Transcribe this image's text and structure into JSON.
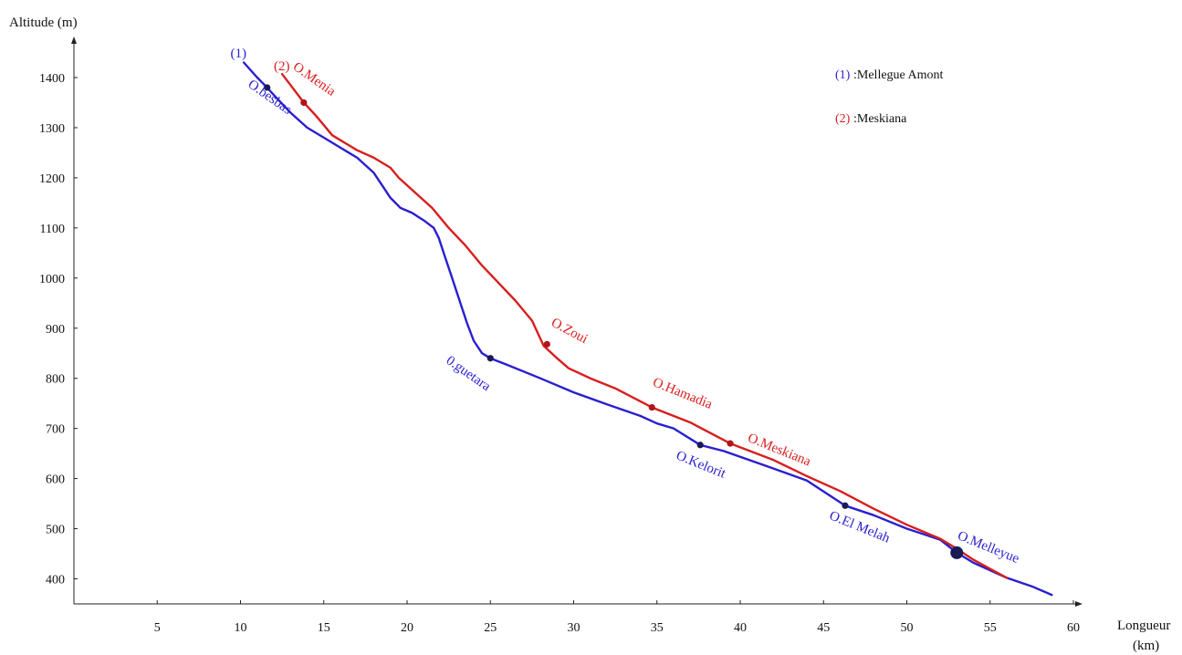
{
  "chart_data": {
    "type": "line",
    "ylabel": "Altitude (m)",
    "xlabel_line1": "Longueur",
    "xlabel_line2": "(km)",
    "xlim": [
      0,
      60
    ],
    "ylim": [
      350,
      1450
    ],
    "x_ticks": [
      5,
      10,
      15,
      20,
      25,
      30,
      35,
      40,
      45,
      50,
      55,
      60
    ],
    "y_ticks": [
      400,
      500,
      600,
      700,
      800,
      900,
      1000,
      1100,
      1200,
      1300,
      1400
    ],
    "grid": false,
    "colors": {
      "series1": "#2a1fd0",
      "series2": "#d81e1e",
      "marker_dark": "#1a1a55",
      "marker_red": "#b0141c"
    },
    "series": [
      {
        "id": "s1",
        "tag": "(1)",
        "tag_x": 9.4,
        "tag_y": 1440,
        "points": [
          [
            10.2,
            1430
          ],
          [
            11,
            1400
          ],
          [
            11.6,
            1380
          ],
          [
            12,
            1365
          ],
          [
            13,
            1330
          ],
          [
            14,
            1300
          ],
          [
            15,
            1280
          ],
          [
            16,
            1260
          ],
          [
            17,
            1240
          ],
          [
            18,
            1210
          ],
          [
            18.5,
            1185
          ],
          [
            19,
            1160
          ],
          [
            19.6,
            1140
          ],
          [
            20.3,
            1130
          ],
          [
            21,
            1115
          ],
          [
            21.6,
            1100
          ],
          [
            21.9,
            1080
          ],
          [
            22.2,
            1050
          ],
          [
            22.6,
            1010
          ],
          [
            23.1,
            960
          ],
          [
            23.6,
            910
          ],
          [
            24,
            875
          ],
          [
            24.5,
            850
          ],
          [
            25,
            840
          ],
          [
            26,
            827
          ],
          [
            28,
            800
          ],
          [
            30,
            772
          ],
          [
            32,
            748
          ],
          [
            34,
            725
          ],
          [
            35,
            710
          ],
          [
            36,
            700
          ],
          [
            37.6,
            667
          ],
          [
            39,
            655
          ],
          [
            42,
            620
          ],
          [
            44,
            596
          ],
          [
            46.3,
            546
          ],
          [
            48,
            527
          ],
          [
            50,
            500
          ],
          [
            52,
            478
          ],
          [
            53,
            452
          ],
          [
            54,
            432
          ],
          [
            56,
            402
          ],
          [
            57.5,
            385
          ],
          [
            58.7,
            368
          ]
        ]
      },
      {
        "id": "s2",
        "tag": "(2)",
        "tag_x": 12.0,
        "tag_y": 1415,
        "points": [
          [
            12.5,
            1407
          ],
          [
            13,
            1385
          ],
          [
            13.8,
            1350
          ],
          [
            14.5,
            1325
          ],
          [
            15,
            1305
          ],
          [
            15.5,
            1285
          ],
          [
            16,
            1275
          ],
          [
            17,
            1255
          ],
          [
            18,
            1240
          ],
          [
            19,
            1220
          ],
          [
            19.5,
            1200
          ],
          [
            20.5,
            1170
          ],
          [
            21.5,
            1140
          ],
          [
            22.5,
            1100
          ],
          [
            23.5,
            1065
          ],
          [
            24.5,
            1025
          ],
          [
            25.5,
            990
          ],
          [
            26.5,
            955
          ],
          [
            27.5,
            915
          ],
          [
            28.2,
            865
          ],
          [
            29,
            840
          ],
          [
            29.7,
            820
          ],
          [
            31,
            800
          ],
          [
            32.5,
            780
          ],
          [
            34.7,
            742
          ],
          [
            37,
            712
          ],
          [
            39.4,
            670
          ],
          [
            42,
            637
          ],
          [
            44,
            605
          ],
          [
            46,
            575
          ],
          [
            48,
            540
          ],
          [
            50,
            508
          ],
          [
            52,
            480
          ],
          [
            53,
            460
          ],
          [
            54,
            438
          ],
          [
            55,
            420
          ],
          [
            56,
            402
          ]
        ]
      }
    ],
    "markers": [
      {
        "x": 11.6,
        "y": 1380,
        "series": "s1",
        "size": "small",
        "label": "O.besbas",
        "label_x": 10.4,
        "label_y": 1383,
        "rotate": 35
      },
      {
        "x": 25.0,
        "y": 840,
        "series": "s1",
        "size": "small",
        "label": "0.guetara",
        "label_x": 22.3,
        "label_y": 832,
        "rotate": 35
      },
      {
        "x": 37.6,
        "y": 667,
        "series": "s1",
        "size": "small",
        "label": "O.Kelorit",
        "label_x": 36.1,
        "label_y": 640,
        "rotate": 22
      },
      {
        "x": 46.3,
        "y": 546,
        "series": "s1",
        "size": "small",
        "label": "O.El Melah",
        "label_x": 45.3,
        "label_y": 520,
        "rotate": 22
      },
      {
        "x": 13.8,
        "y": 1350,
        "series": "s2",
        "size": "small",
        "label": "O.Menia",
        "label_x": 13.1,
        "label_y": 1418,
        "rotate": 35
      },
      {
        "x": 28.4,
        "y": 868,
        "series": "s2",
        "size": "small",
        "label": "O.Zoui",
        "label_x": 28.6,
        "label_y": 906,
        "rotate": 28
      },
      {
        "x": 34.7,
        "y": 742,
        "series": "s2",
        "size": "small",
        "label": "O.Hamadia",
        "label_x": 34.7,
        "label_y": 786,
        "rotate": 22
      },
      {
        "x": 39.4,
        "y": 670,
        "series": "s2",
        "size": "small",
        "label": "O.Meskiana",
        "label_x": 40.4,
        "label_y": 675,
        "rotate": 22
      },
      {
        "x": 53.0,
        "y": 452,
        "series": "s1",
        "size": "large",
        "label": "O.Melleyue",
        "label_x": 53.0,
        "label_y": 480,
        "rotate": 22
      }
    ],
    "legend": {
      "placement": "top-right",
      "entries": [
        {
          "tag": "(1)",
          "name": ":Mellegue Amont",
          "color": "#2a1fd0"
        },
        {
          "tag": "(2)",
          "name": ":Meskiana",
          "color": "#d81e1e"
        }
      ]
    }
  }
}
